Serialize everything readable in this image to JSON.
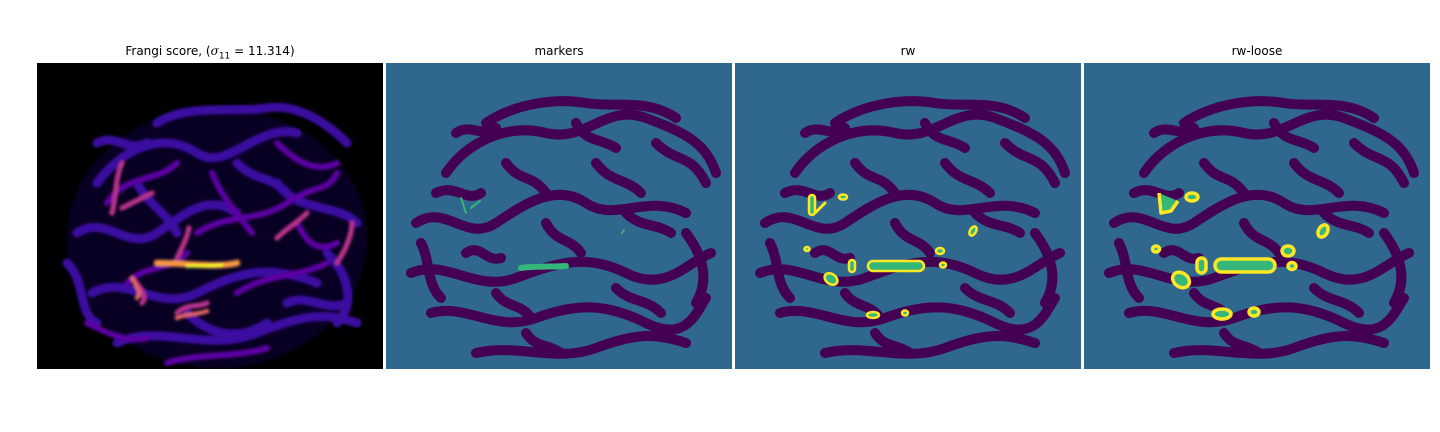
{
  "figure": {
    "panels": [
      {
        "title_prefix": "Frangi score, (",
        "title_math": "σ",
        "title_sub": "11",
        "title_suffix": " = 11.314)",
        "colormap": "plasma",
        "background": "#000000"
      },
      {
        "title": "markers",
        "colormap": "viridis",
        "background": "#30678d"
      },
      {
        "title": "rw",
        "colormap": "viridis",
        "background": "#30678d"
      },
      {
        "title": "rw-loose",
        "colormap": "viridis",
        "background": "#30678d"
      }
    ],
    "colors": {
      "black": "#000000",
      "plasma_dark": "#1b0a8a",
      "plasma_mid": "#7e03a8",
      "plasma_bright": "#f89540",
      "plasma_peak": "#f0f921",
      "viridis_dark": "#440154",
      "viridis_teal": "#30678d",
      "viridis_green": "#35b779",
      "viridis_yellow": "#fde725"
    }
  }
}
